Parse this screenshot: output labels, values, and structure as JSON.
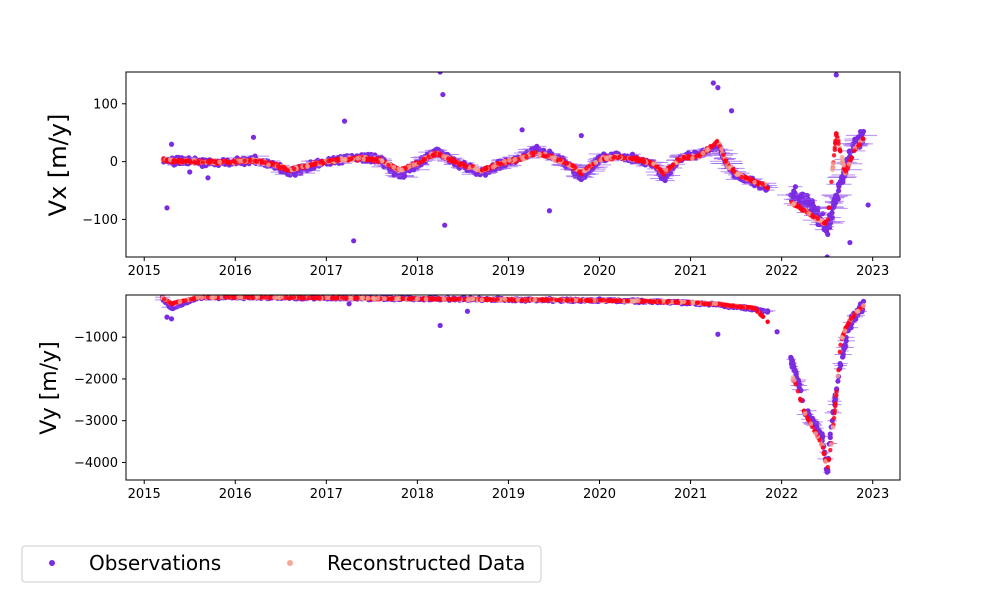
{
  "colors": {
    "observations": "#7B2BE2",
    "observations_err": "#9A5CEB",
    "reconstructed": "#F4A898",
    "reconstructed_dense": "#FF0018"
  },
  "legend": {
    "placement": "lower-left, outside plot",
    "observations_label": "Observations",
    "reconstructed_label": "Reconstructed Data"
  },
  "chart_data": [
    {
      "type": "scatter",
      "panel": "top",
      "title": "",
      "xlabel": "",
      "ylabel": "Vx [m/y]",
      "xlim": [
        2014.8,
        2023.3
      ],
      "ylim": [
        -165,
        155
      ],
      "xticks": [
        2015,
        2016,
        2017,
        2018,
        2019,
        2020,
        2021,
        2022,
        2023
      ],
      "xtick_labels": [
        "2015",
        "2016",
        "2017",
        "2018",
        "2019",
        "2020",
        "2021",
        "2022",
        "2023"
      ],
      "yticks": [
        100,
        0,
        -100
      ],
      "ytick_labels": [
        "100",
        "0",
        "−100"
      ],
      "grid": false,
      "series": [
        {
          "name": "Observations",
          "x": [
            2015.2,
            2015.3,
            2015.5,
            2015.8,
            2016.0,
            2016.2,
            2016.4,
            2016.6,
            2016.8,
            2017.0,
            2017.2,
            2017.4,
            2017.6,
            2017.8,
            2018.0,
            2018.2,
            2018.3,
            2018.5,
            2018.7,
            2018.9,
            2019.1,
            2019.3,
            2019.5,
            2019.7,
            2019.8,
            2020.0,
            2020.2,
            2020.4,
            2020.6,
            2020.7,
            2020.9,
            2021.1,
            2021.3,
            2021.4,
            2021.5,
            2021.6,
            2021.8,
            2022.3,
            2022.5,
            2022.6,
            2022.7,
            2022.8,
            2022.9
          ],
          "y": [
            5,
            2,
            0,
            -2,
            0,
            3,
            -5,
            -20,
            -8,
            0,
            5,
            8,
            2,
            -25,
            -5,
            20,
            10,
            -8,
            -20,
            -5,
            5,
            20,
            8,
            -10,
            -30,
            5,
            10,
            5,
            -5,
            -30,
            8,
            12,
            30,
            -5,
            -25,
            -30,
            -45,
            -70,
            -120,
            -60,
            -10,
            30,
            45
          ],
          "outliers_x": [
            2015.3,
            2015.25,
            2015.5,
            2015.7,
            2016.2,
            2017.2,
            2017.3,
            2018.25,
            2018.28,
            2018.3,
            2019.15,
            2019.45,
            2019.8,
            2021.25,
            2021.3,
            2021.45,
            2022.5,
            2022.6,
            2022.75,
            2022.95
          ],
          "outliers_y": [
            30,
            -80,
            -18,
            -28,
            42,
            70,
            -137,
            155,
            116,
            -110,
            55,
            -85,
            45,
            136,
            128,
            88,
            -165,
            150,
            -140,
            -75
          ]
        },
        {
          "name": "Reconstructed Data",
          "x": [
            2015.2,
            2015.3,
            2015.5,
            2015.8,
            2016.0,
            2016.2,
            2016.4,
            2016.6,
            2016.8,
            2017.0,
            2017.2,
            2017.4,
            2017.6,
            2017.8,
            2018.0,
            2018.2,
            2018.3,
            2018.5,
            2018.7,
            2018.9,
            2019.1,
            2019.3,
            2019.5,
            2019.7,
            2019.8,
            2020.0,
            2020.2,
            2020.4,
            2020.6,
            2020.7,
            2020.9,
            2021.1,
            2021.3,
            2021.4,
            2021.5,
            2021.6,
            2021.8,
            2022.2,
            2022.5,
            2022.6,
            2022.7,
            2022.8,
            2022.9
          ],
          "y": [
            4,
            1,
            0,
            -1,
            0,
            2,
            -4,
            -15,
            -6,
            0,
            4,
            6,
            2,
            -15,
            -3,
            15,
            8,
            -6,
            -15,
            -4,
            4,
            15,
            6,
            -8,
            -20,
            4,
            8,
            4,
            -4,
            -20,
            6,
            10,
            35,
            -5,
            -20,
            -28,
            -40,
            -80,
            -110,
            50,
            -20,
            20,
            40
          ]
        }
      ]
    },
    {
      "type": "scatter",
      "panel": "bottom",
      "title": "",
      "xlabel": "",
      "ylabel": "Vy [m/y]",
      "xlim": [
        2014.8,
        2023.3
      ],
      "ylim": [
        -4420,
        10
      ],
      "xticks": [
        2015,
        2016,
        2017,
        2018,
        2019,
        2020,
        2021,
        2022,
        2023
      ],
      "xtick_labels": [
        "2015",
        "2016",
        "2017",
        "2018",
        "2019",
        "2020",
        "2021",
        "2022",
        "2023"
      ],
      "yticks": [
        -1000,
        -2000,
        -3000,
        -4000
      ],
      "ytick_labels": [
        "−1000",
        "−2000",
        "−3000",
        "−4000"
      ],
      "grid": false,
      "series": [
        {
          "name": "Observations",
          "x": [
            2015.2,
            2015.3,
            2015.6,
            2016.0,
            2016.5,
            2017.0,
            2017.5,
            2018.0,
            2018.5,
            2019.0,
            2019.5,
            2020.0,
            2020.5,
            2021.0,
            2021.3,
            2021.5,
            2021.7,
            2021.9,
            2022.15,
            2022.25,
            2022.45,
            2022.5,
            2022.55,
            2022.6,
            2022.65,
            2022.7,
            2022.75,
            2022.8,
            2022.9
          ],
          "y": [
            -60,
            -300,
            -50,
            -40,
            -50,
            -60,
            -70,
            -80,
            -90,
            -100,
            -110,
            -120,
            -140,
            -180,
            -220,
            -280,
            -330,
            -420,
            -1800,
            -2700,
            -3400,
            -4300,
            -3000,
            -2300,
            -1600,
            -1100,
            -700,
            -500,
            -200
          ],
          "outliers_x": [
            2015.25,
            2015.3,
            2017.25,
            2018.25,
            2018.55,
            2021.3,
            2021.95
          ],
          "outliers_y": [
            -520,
            -560,
            -200,
            -720,
            -380,
            -930,
            -870
          ]
        },
        {
          "name": "Reconstructed Data",
          "x": [
            2015.2,
            2015.3,
            2015.6,
            2016.0,
            2016.5,
            2017.0,
            2017.5,
            2018.0,
            2018.5,
            2019.0,
            2019.5,
            2020.0,
            2020.5,
            2021.0,
            2021.3,
            2021.5,
            2021.7,
            2021.9,
            2022.15,
            2022.25,
            2022.45,
            2022.5,
            2022.55,
            2022.6,
            2022.65,
            2022.7,
            2022.75,
            2022.8,
            2022.9
          ],
          "y": [
            -50,
            -200,
            -45,
            -40,
            -50,
            -60,
            -70,
            -80,
            -90,
            -100,
            -110,
            -120,
            -140,
            -170,
            -210,
            -260,
            -300,
            -750,
            -2100,
            -2800,
            -3600,
            -4200,
            -3500,
            -2400,
            -1100,
            -800,
            -600,
            -450,
            -250
          ]
        }
      ]
    }
  ]
}
